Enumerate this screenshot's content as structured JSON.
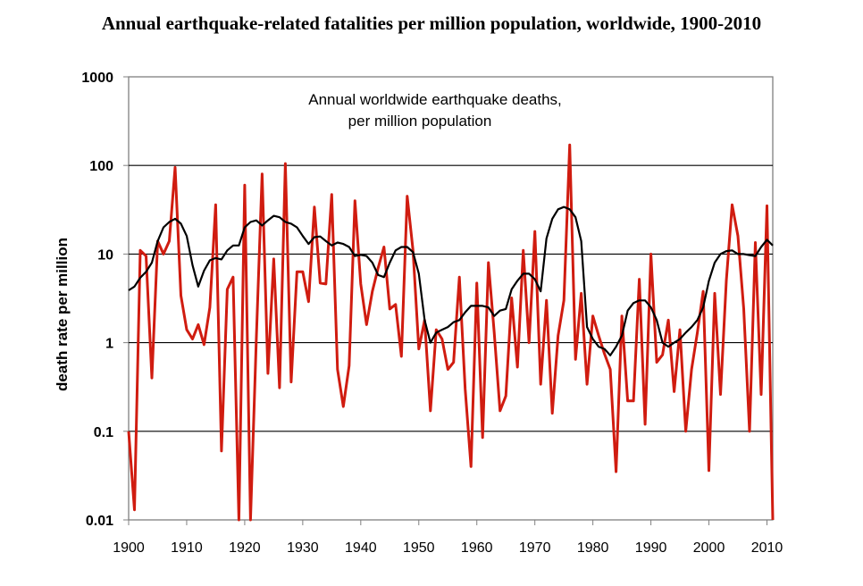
{
  "page_title": "Annual earthquake-related fatalities per million population, worldwide, 1900-2010",
  "chart_data": {
    "type": "line",
    "title": "Annual earthquake-related fatalities per million population, worldwide, 1900-2010",
    "annotation": [
      "Annual worldwide earthquake deaths,",
      "per million population"
    ],
    "ylabel": "death rate per million",
    "xlabel": "",
    "yscale": "log",
    "xlim": [
      1900,
      2011
    ],
    "ylim": [
      0.01,
      1000
    ],
    "xticks": [
      "1900",
      "1910",
      "1920",
      "1930",
      "1940",
      "1950",
      "1960",
      "1970",
      "1980",
      "1990",
      "2000",
      "2010"
    ],
    "yticks": [
      "1000",
      "100",
      "10",
      "1",
      "0.1",
      "0.01"
    ],
    "grid": "horizontal",
    "legend": "none",
    "series": [
      {
        "color": "#d01c10",
        "x": [
          1900,
          1901,
          1902,
          1903,
          1904,
          1905,
          1906,
          1907,
          1908,
          1909,
          1910,
          1911,
          1912,
          1913,
          1914,
          1915,
          1916,
          1917,
          1918,
          1919,
          1920,
          1921,
          1922,
          1923,
          1924,
          1925,
          1926,
          1927,
          1928,
          1929,
          1930,
          1931,
          1932,
          1933,
          1934,
          1935,
          1936,
          1937,
          1938,
          1939,
          1940,
          1941,
          1942,
          1943,
          1944,
          1945,
          1946,
          1947,
          1948,
          1949,
          1950,
          1951,
          1952,
          1953,
          1954,
          1955,
          1956,
          1957,
          1958,
          1959,
          1960,
          1961,
          1962,
          1963,
          1964,
          1965,
          1966,
          1967,
          1968,
          1969,
          1970,
          1971,
          1972,
          1973,
          1974,
          1975,
          1976,
          1977,
          1978,
          1979,
          1980,
          1981,
          1982,
          1983,
          1984,
          1985,
          1986,
          1987,
          1988,
          1989,
          1990,
          1991,
          1992,
          1993,
          1994,
          1995,
          1996,
          1997,
          1998,
          1999,
          2000,
          2001,
          2002,
          2003,
          2004,
          2005,
          2006,
          2007,
          2008,
          2009,
          2010,
          2011
        ],
        "values": [
          0.1,
          0.013,
          11,
          9.5,
          0.4,
          14,
          10,
          14,
          95,
          3.4,
          1.4,
          1.1,
          1.6,
          0.95,
          2.5,
          36,
          0.06,
          4,
          5.5,
          0.01,
          60,
          0.01,
          1.1,
          80,
          0.45,
          8.8,
          0.31,
          105,
          0.36,
          6.3,
          6.3,
          2.9,
          34,
          4.7,
          4.6,
          47,
          0.5,
          0.19,
          0.55,
          40,
          4.6,
          1.6,
          3.8,
          7,
          12,
          2.4,
          2.7,
          0.7,
          45,
          11,
          0.85,
          1.8,
          0.17,
          1.4,
          1.1,
          0.5,
          0.6,
          5.5,
          0.3,
          0.04,
          4.7,
          0.085,
          8,
          1.3,
          0.17,
          0.25,
          3.2,
          0.53,
          11,
          1,
          18,
          0.34,
          3,
          0.16,
          1.2,
          3,
          170,
          0.65,
          3.6,
          0.34,
          2,
          1.2,
          0.75,
          0.5,
          0.035,
          2,
          0.22,
          0.22,
          5.2,
          0.12,
          10,
          0.6,
          0.73,
          1.8,
          0.28,
          1.4,
          0.1,
          0.5,
          1.3,
          3.8,
          0.036,
          3.6,
          0.26,
          5,
          36,
          16,
          2.4,
          0.1,
          13.5,
          0.26,
          35,
          0.01
        ]
      },
      {
        "color": "#000000",
        "x": [
          1900,
          1901,
          1902,
          1903,
          1904,
          1905,
          1906,
          1907,
          1908,
          1909,
          1910,
          1911,
          1912,
          1913,
          1914,
          1915,
          1916,
          1917,
          1918,
          1919,
          1920,
          1921,
          1922,
          1923,
          1924,
          1925,
          1926,
          1927,
          1928,
          1929,
          1930,
          1931,
          1932,
          1933,
          1934,
          1935,
          1936,
          1937,
          1938,
          1939,
          1940,
          1941,
          1942,
          1943,
          1944,
          1945,
          1946,
          1947,
          1948,
          1949,
          1950,
          1951,
          1952,
          1953,
          1954,
          1955,
          1956,
          1957,
          1958,
          1959,
          1960,
          1961,
          1962,
          1963,
          1964,
          1965,
          1966,
          1967,
          1968,
          1969,
          1970,
          1971,
          1972,
          1973,
          1974,
          1975,
          1976,
          1977,
          1978,
          1979,
          1980,
          1981,
          1982,
          1983,
          1984,
          1985,
          1986,
          1987,
          1988,
          1989,
          1990,
          1991,
          1992,
          1993,
          1994,
          1995,
          1996,
          1997,
          1998,
          1999,
          2000,
          2001,
          2002,
          2003,
          2004,
          2005,
          2006,
          2007,
          2008,
          2009,
          2010,
          2011
        ],
        "values": [
          3.9,
          4.3,
          5.4,
          6.3,
          8,
          14,
          20,
          23,
          25,
          22,
          16,
          7.5,
          4.3,
          6.5,
          8.5,
          9,
          8.7,
          11,
          12.5,
          12.5,
          20,
          23,
          24,
          21,
          24,
          27,
          26,
          23,
          22,
          20,
          16,
          13,
          15.5,
          15.8,
          14,
          12.5,
          13.5,
          13,
          12,
          9.5,
          9.8,
          9.5,
          8,
          5.8,
          5.5,
          8,
          11,
          12,
          12,
          10.5,
          6,
          1.8,
          1,
          1.3,
          1.4,
          1.5,
          1.7,
          1.8,
          2.2,
          2.6,
          2.6,
          2.6,
          2.5,
          2,
          2.3,
          2.4,
          4,
          5,
          6,
          6,
          5.2,
          3.8,
          15,
          25,
          32,
          34,
          32,
          26,
          14,
          1.5,
          1.1,
          0.9,
          0.85,
          0.72,
          0.9,
          1.2,
          2.3,
          2.8,
          3,
          3,
          2.5,
          1.8,
          1,
          0.9,
          1,
          1.1,
          1.3,
          1.5,
          1.8,
          2.5,
          5,
          8,
          10,
          10.8,
          11,
          10,
          10,
          9.7,
          9.5,
          12,
          14.5,
          12.5
        ]
      }
    ]
  }
}
